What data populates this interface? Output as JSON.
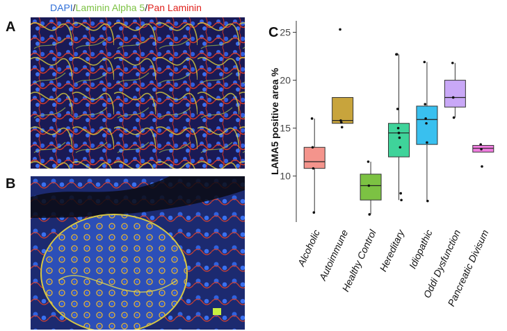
{
  "figure": {
    "stain_title": {
      "dapi": "DAPI",
      "sep1": "/",
      "laminin_a5": "Laminin Alpha 5",
      "sep2": "/",
      "pan_laminin": "Pan Laminin"
    },
    "panel_labels": {
      "a": "A",
      "b": "B",
      "c": "C"
    },
    "colors": {
      "dapi": "#2f6fd8",
      "laminin_a5": "#7cc243",
      "pan_laminin": "#e0201b"
    }
  },
  "chart_data": {
    "type": "box",
    "title": "",
    "xlabel": "",
    "ylabel": "LAMA5 positive area %",
    "ylim": [
      5.2,
      26.2
    ],
    "yticks": [
      10,
      15,
      20,
      25
    ],
    "grid": false,
    "categories": [
      "Alcoholic",
      "Autoimmune",
      "Healthy Control",
      "Hereditary",
      "Idiopathic",
      "Oddi Dysfunction",
      "Pancreatic Divisum"
    ],
    "boxes": [
      {
        "name": "Alcoholic",
        "color": "#f4948c",
        "min": 6.2,
        "q1": 10.8,
        "median": 11.5,
        "q3": 13.0,
        "max": 16.0,
        "points": [
          16.0,
          13.0,
          10.8,
          6.2
        ]
      },
      {
        "name": "Autoimmune",
        "color": "#c8a43c",
        "min": 15.5,
        "q1": 15.5,
        "median": 15.8,
        "q3": 18.2,
        "max": 18.2,
        "points": [
          25.3,
          15.8,
          15.6,
          15.1
        ]
      },
      {
        "name": "Healthy Control",
        "color": "#7cc243",
        "min": 6.0,
        "q1": 7.5,
        "median": 9.0,
        "q3": 10.2,
        "max": 11.5,
        "points": [
          11.5,
          9.0,
          6.0
        ]
      },
      {
        "name": "Hereditary",
        "color": "#3fd39a",
        "min": 7.5,
        "q1": 12.0,
        "median": 14.5,
        "q3": 15.5,
        "max": 22.7,
        "points": [
          22.7,
          22.7,
          17.0,
          15.0,
          14.5,
          14.0,
          13.0,
          8.2,
          7.5
        ]
      },
      {
        "name": "Idiopathic",
        "color": "#39c0ef",
        "min": 7.4,
        "q1": 13.3,
        "median": 15.9,
        "q3": 17.3,
        "max": 21.9,
        "points": [
          21.9,
          17.5,
          16.0,
          15.5,
          13.5,
          7.4
        ]
      },
      {
        "name": "Oddi Dysfunction",
        "color": "#c9a8f7",
        "min": 16.1,
        "q1": 17.2,
        "median": 18.2,
        "q3": 20.0,
        "max": 21.8,
        "points": [
          21.8,
          18.2,
          16.1
        ]
      },
      {
        "name": "Pancreatic Divisum",
        "color": "#f07de0",
        "min": 12.5,
        "q1": 12.5,
        "median": 12.9,
        "q3": 13.2,
        "max": 13.2,
        "points": [
          13.3,
          12.8,
          11.0
        ]
      }
    ]
  }
}
